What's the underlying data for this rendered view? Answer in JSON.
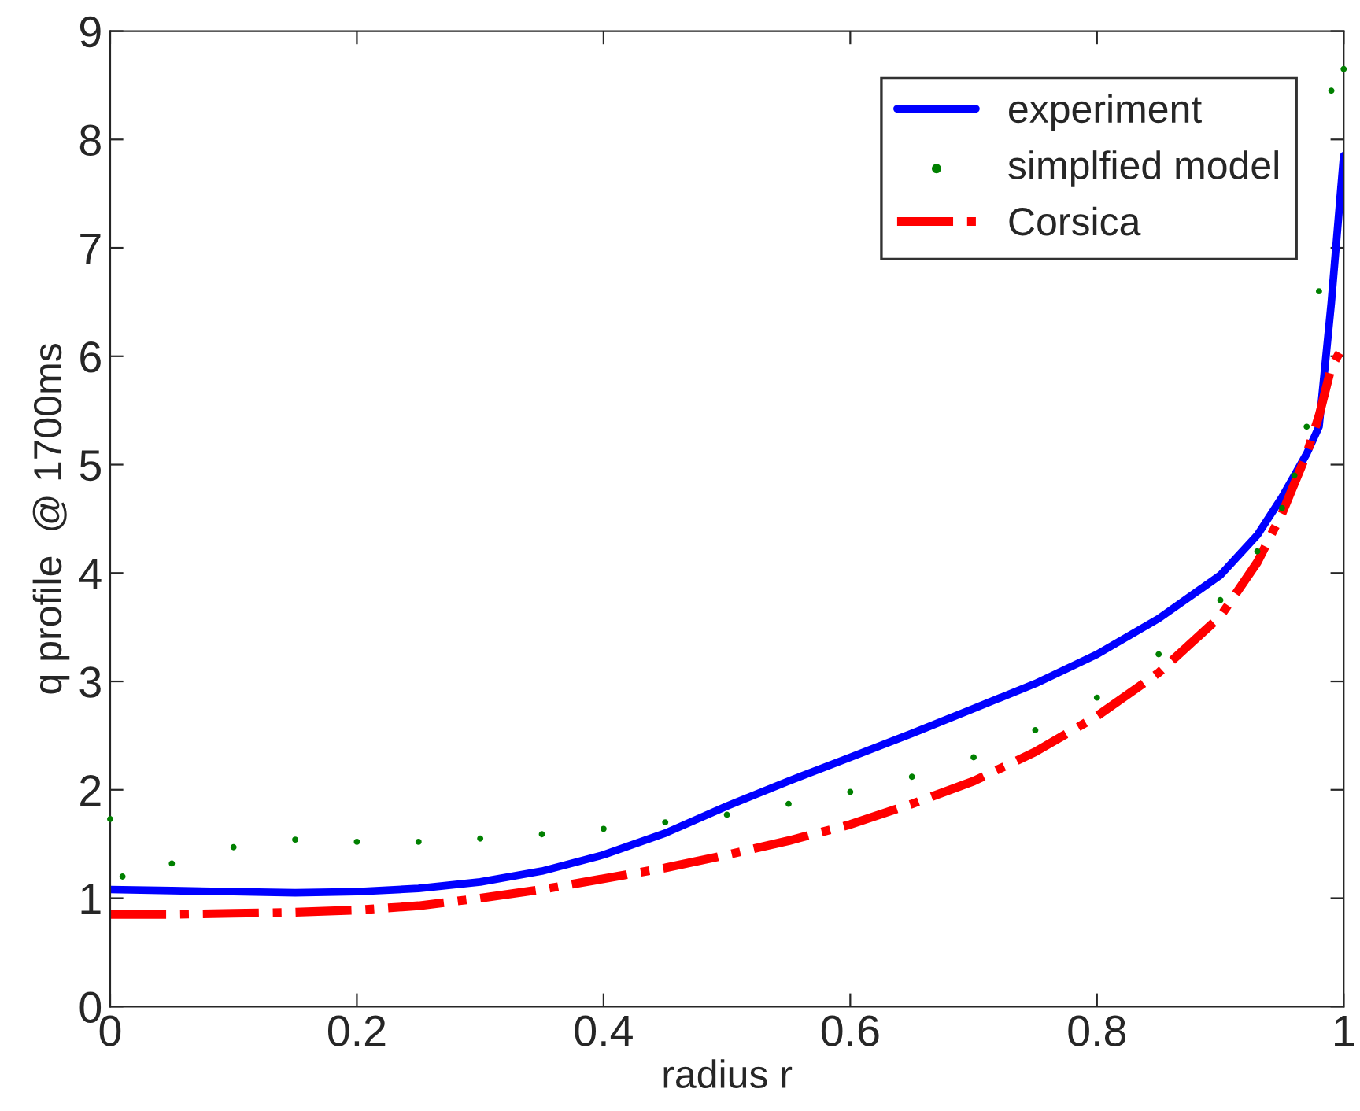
{
  "chart_data": {
    "type": "line",
    "xlabel": "radius r",
    "ylabel": "q profile  @ 1700ms",
    "xlim": [
      0,
      1
    ],
    "ylim": [
      0,
      9
    ],
    "xticks": [
      0,
      0.2,
      0.4,
      0.6,
      0.8,
      1
    ],
    "yticks": [
      0,
      1,
      2,
      3,
      4,
      5,
      6,
      7,
      8,
      9
    ],
    "grid": false,
    "legend": "top right",
    "series": [
      {
        "name": "experiment",
        "color": "#0000ff",
        "line_style": "solid",
        "marker": "none",
        "x": [
          0,
          0.05,
          0.1,
          0.15,
          0.2,
          0.25,
          0.3,
          0.35,
          0.4,
          0.45,
          0.5,
          0.55,
          0.6,
          0.65,
          0.7,
          0.75,
          0.8,
          0.85,
          0.9,
          0.93,
          0.95,
          0.97,
          0.98,
          0.99,
          1.0
        ],
        "values": [
          1.08,
          1.07,
          1.06,
          1.05,
          1.06,
          1.09,
          1.15,
          1.25,
          1.4,
          1.6,
          1.85,
          2.08,
          2.3,
          2.52,
          2.75,
          2.98,
          3.25,
          3.58,
          3.98,
          4.35,
          4.7,
          5.1,
          5.35,
          6.5,
          7.85
        ]
      },
      {
        "name": "simplfied model",
        "color": "#008000",
        "type": "scatter",
        "marker": "circle",
        "x": [
          0,
          0.01,
          0.05,
          0.1,
          0.15,
          0.2,
          0.25,
          0.3,
          0.35,
          0.4,
          0.45,
          0.5,
          0.55,
          0.6,
          0.65,
          0.7,
          0.75,
          0.8,
          0.85,
          0.9,
          0.93,
          0.95,
          0.96,
          0.97,
          0.98,
          0.99,
          1.0
        ],
        "values": [
          1.73,
          1.2,
          1.32,
          1.47,
          1.54,
          1.52,
          1.52,
          1.55,
          1.59,
          1.64,
          1.7,
          1.77,
          1.87,
          1.98,
          2.12,
          2.3,
          2.55,
          2.85,
          3.25,
          3.75,
          4.2,
          4.6,
          4.9,
          5.35,
          6.6,
          8.45,
          8.65
        ]
      },
      {
        "name": "Corsica",
        "color": "#ff0000",
        "line_style": "dashdot",
        "marker": "none",
        "x": [
          0,
          0.05,
          0.1,
          0.15,
          0.2,
          0.25,
          0.3,
          0.35,
          0.4,
          0.45,
          0.5,
          0.55,
          0.6,
          0.65,
          0.7,
          0.75,
          0.8,
          0.85,
          0.9,
          0.93,
          0.95,
          0.97,
          0.98,
          0.99,
          1.0
        ],
        "values": [
          0.85,
          0.85,
          0.86,
          0.87,
          0.89,
          0.93,
          1.0,
          1.08,
          1.18,
          1.28,
          1.4,
          1.53,
          1.68,
          1.87,
          2.08,
          2.35,
          2.68,
          3.08,
          3.6,
          4.1,
          4.55,
          5.1,
          5.45,
          5.9,
          6.1
        ]
      }
    ]
  }
}
